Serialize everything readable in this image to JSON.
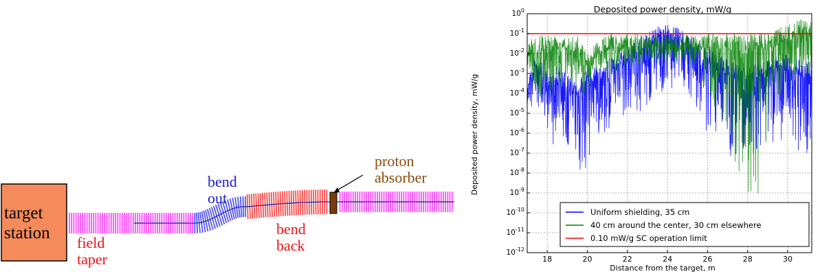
{
  "diagram": {
    "target_station": {
      "line1": "target",
      "line2": "station",
      "color": "#f58a5a"
    },
    "field_taper": {
      "line1": "field",
      "line2": "taper"
    },
    "bend_out": {
      "line1": "bend",
      "line2": "out"
    },
    "bend_back": {
      "line1": "bend",
      "line2": "back"
    },
    "proton_absorber": {
      "line1": "proton",
      "line2": "absorber"
    },
    "colors": {
      "magenta": "#ff22ff",
      "blue": "#2a2aff",
      "red": "#ff2222",
      "brown": "#7a3a10",
      "axis": "#1a1a99"
    }
  },
  "chart_data": {
    "type": "line",
    "title": "Deposited power density, mW/g",
    "xlabel": "Distance from the target, m",
    "ylabel": "Deposited power density, mW/g",
    "xlim": [
      17,
      31.2
    ],
    "ylim": [
      1e-12,
      1
    ],
    "yscale": "log",
    "grid": true,
    "x_ticks": [
      "18",
      "20",
      "22",
      "24",
      "26",
      "28",
      "30"
    ],
    "y_ticks": [
      {
        "base": "10",
        "exp": "0"
      },
      {
        "base": "10",
        "exp": "-1"
      },
      {
        "base": "10",
        "exp": "-2"
      },
      {
        "base": "10",
        "exp": "-3"
      },
      {
        "base": "10",
        "exp": "-4"
      },
      {
        "base": "10",
        "exp": "-5"
      },
      {
        "base": "10",
        "exp": "-6"
      },
      {
        "base": "10",
        "exp": "-7"
      },
      {
        "base": "10",
        "exp": "-8"
      },
      {
        "base": "10",
        "exp": "-9"
      },
      {
        "base": "10",
        "exp": "-10"
      },
      {
        "base": "10",
        "exp": "-11"
      },
      {
        "base": "10",
        "exp": "-12"
      }
    ],
    "legend_position": "lower-center",
    "series": [
      {
        "name": "Uniform shielding, 35 cm",
        "color": "#0000ff",
        "x": [
          17.0,
          17.5,
          18.0,
          18.5,
          19.0,
          19.5,
          20.0,
          20.5,
          21.0,
          21.5,
          22.0,
          22.5,
          23.0,
          23.5,
          24.0,
          24.5,
          25.0,
          25.5,
          26.0,
          26.5,
          27.0,
          27.5,
          28.0,
          28.5,
          29.0,
          29.5,
          30.0,
          30.5,
          31.2
        ],
        "upper": [
          0.001,
          0.01,
          0.001,
          0.003,
          0.001,
          0.0003,
          0.002,
          0.003,
          0.005,
          0.01,
          0.02,
          0.05,
          0.1,
          0.3,
          0.3,
          0.2,
          0.1,
          0.05,
          0.02,
          0.01,
          0.005,
          0.003,
          0.002,
          0.005,
          0.005,
          0.01,
          0.01,
          0.005,
          0.005
        ],
        "lower": [
          1e-05,
          1e-05,
          1e-06,
          1e-07,
          1e-07,
          1e-08,
          1e-08,
          1e-06,
          1e-06,
          1e-06,
          1e-05,
          1e-05,
          1e-05,
          0.0001,
          0.0001,
          0.0001,
          0.0001,
          1e-05,
          1e-06,
          1e-06,
          1e-07,
          1e-08,
          1e-08,
          1e-07,
          1e-06,
          1e-07,
          1e-06,
          1e-07,
          1e-07
        ]
      },
      {
        "name": "40 cm around the center, 30 cm elsewhere",
        "color": "#008000",
        "x": [
          17.0,
          17.5,
          18.0,
          18.5,
          19.0,
          19.5,
          20.0,
          20.5,
          21.0,
          21.5,
          22.0,
          22.5,
          23.0,
          23.5,
          24.0,
          24.5,
          25.0,
          25.5,
          26.0,
          26.5,
          27.0,
          27.5,
          28.0,
          28.5,
          29.0,
          29.5,
          30.0,
          30.5,
          31.2
        ],
        "upper": [
          0.05,
          0.1,
          0.1,
          0.1,
          0.1,
          0.1,
          0.01,
          0.05,
          0.1,
          0.1,
          0.1,
          0.1,
          0.1,
          0.1,
          0.1,
          0.1,
          0.1,
          0.1,
          0.1,
          0.1,
          0.1,
          0.1,
          0.1,
          0.1,
          0.1,
          0.2,
          0.3,
          0.5,
          0.5
        ],
        "lower": [
          0.001,
          0.0001,
          1e-05,
          0.0001,
          0.001,
          0.0001,
          0.0001,
          0.001,
          0.001,
          0.001,
          0.001,
          0.001,
          0.003,
          0.003,
          0.003,
          0.003,
          0.003,
          0.001,
          0.0001,
          1e-05,
          1e-06,
          1e-08,
          1e-09,
          1e-10,
          1e-06,
          1e-05,
          0.0001,
          0.001,
          0.0001
        ]
      },
      {
        "name": "0.10 mW/g SC operation limit",
        "color": "#ff0000",
        "x": [
          17.0,
          31.2
        ],
        "y": [
          0.1,
          0.1
        ]
      }
    ]
  }
}
